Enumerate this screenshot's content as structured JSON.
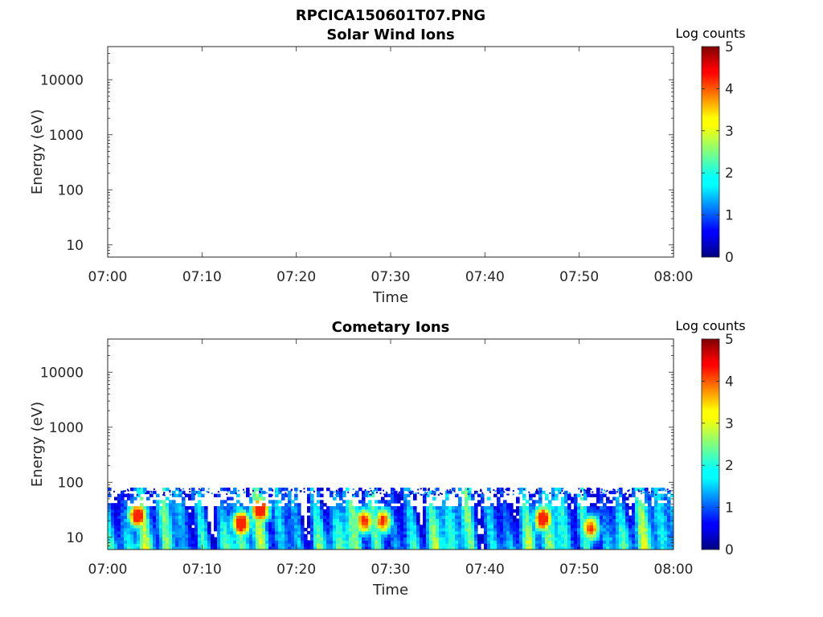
{
  "title": "RPCICA150601T07.PNG",
  "chart_data": [
    {
      "type": "heatmap",
      "title": "Solar Wind Ions",
      "xlabel": "Time",
      "ylabel": "Energy (eV)",
      "x_ticks": [
        "07:00",
        "07:10",
        "07:20",
        "07:30",
        "07:40",
        "07:50",
        "08:00"
      ],
      "xlim": [
        "07:00",
        "08:00"
      ],
      "y_scale": "log",
      "ylim": [
        6,
        40000
      ],
      "y_ticks": [
        10,
        100,
        1000,
        10000
      ],
      "y_tick_labels": [
        "10",
        "100",
        "1000",
        "10000"
      ],
      "colorbar": {
        "label": "Log counts",
        "range": [
          0,
          5
        ],
        "ticks": [
          "0",
          "1",
          "2",
          "3",
          "4",
          "5"
        ],
        "colormap": "jet"
      },
      "data": "none"
    },
    {
      "type": "heatmap",
      "title": "Cometary Ions",
      "xlabel": "Time",
      "ylabel": "Energy (eV)",
      "x_ticks": [
        "07:00",
        "07:10",
        "07:20",
        "07:30",
        "07:40",
        "07:50",
        "08:00"
      ],
      "xlim": [
        "07:00",
        "08:00"
      ],
      "y_scale": "log",
      "ylim": [
        6,
        40000
      ],
      "y_ticks": [
        10,
        100,
        1000,
        10000
      ],
      "y_tick_labels": [
        "10",
        "100",
        "1000",
        "10000"
      ],
      "colorbar": {
        "label": "Log counts",
        "range": [
          0,
          5
        ],
        "ticks": [
          "0",
          "1",
          "2",
          "3",
          "4",
          "5"
        ],
        "colormap": "jet"
      },
      "energy_extent_ev": [
        6,
        80
      ],
      "peaks": [
        {
          "time": "07:03",
          "energy_ev": 25,
          "log_counts": 3.9
        },
        {
          "time": "07:14",
          "energy_ev": 18,
          "log_counts": 4.0
        },
        {
          "time": "07:16",
          "energy_ev": 32,
          "log_counts": 4.0
        },
        {
          "time": "07:27",
          "energy_ev": 20,
          "log_counts": 3.2
        },
        {
          "time": "07:29",
          "energy_ev": 20,
          "log_counts": 3.1
        },
        {
          "time": "07:46",
          "energy_ev": 22,
          "log_counts": 3.9
        },
        {
          "time": "07:51",
          "energy_ev": 15,
          "log_counts": 3.0
        }
      ]
    }
  ]
}
